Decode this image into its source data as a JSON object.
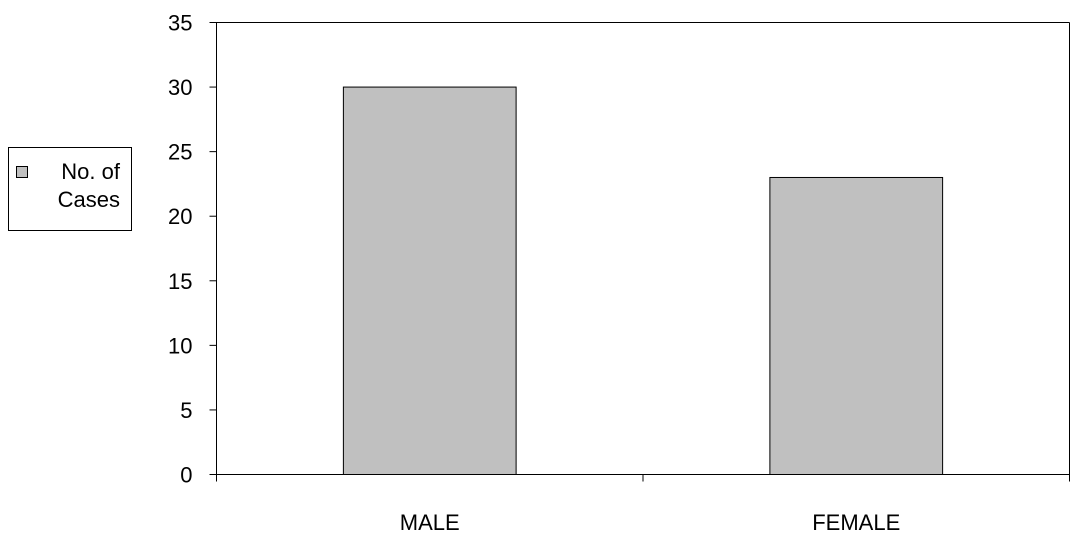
{
  "chart_data": {
    "type": "bar",
    "categories": [
      "MALE",
      "FEMALE"
    ],
    "series": [
      {
        "name": "No. of Cases",
        "values": [
          30,
          23
        ]
      }
    ],
    "ylim": [
      0,
      35
    ],
    "ytick_step": 5,
    "grid": false,
    "legend_position": "left",
    "legend_lines": [
      "No. of",
      "Cases"
    ],
    "colors": {
      "bar_fill": "#c0c0c0",
      "bar_stroke": "#000000",
      "axis": "#000000",
      "background": "#ffffff"
    }
  }
}
